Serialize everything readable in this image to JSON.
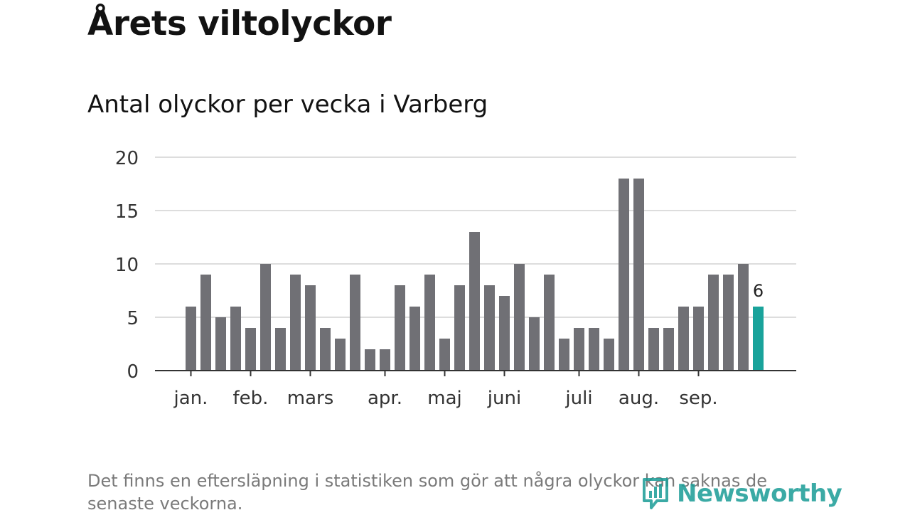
{
  "title": "Årets viltolyckor",
  "subtitle": "Antal olyckor per vecka i Varberg",
  "footnote": "Det finns en eftersläpning i statistiken som gör att några olyckor kan saknas de senaste veckorna.",
  "logo": {
    "text": "Newsworthy",
    "icon": "newsworthy-chart-icon"
  },
  "colors": {
    "bar": "#707075",
    "highlight": "#1aa39b",
    "grid": "#dddddd",
    "axis": "#333333"
  },
  "chart_data": {
    "type": "bar",
    "values": [
      6,
      9,
      5,
      6,
      4,
      10,
      4,
      9,
      8,
      4,
      3,
      9,
      2,
      2,
      8,
      6,
      9,
      3,
      8,
      13,
      8,
      7,
      10,
      5,
      9,
      3,
      4,
      4,
      3,
      18,
      18,
      4,
      4,
      6,
      6,
      9,
      9,
      10,
      6
    ],
    "highlight_last": true,
    "last_value_label": "6",
    "yticks": [
      "20",
      "15",
      "10",
      "5",
      "0"
    ],
    "ylim": [
      0,
      20
    ],
    "month_labels": [
      {
        "label": "jan.",
        "week": 1
      },
      {
        "label": "feb.",
        "week": 5
      },
      {
        "label": "mars",
        "week": 9
      },
      {
        "label": "apr.",
        "week": 14
      },
      {
        "label": "maj",
        "week": 18
      },
      {
        "label": "juni",
        "week": 22
      },
      {
        "label": "juli",
        "week": 27
      },
      {
        "label": "aug.",
        "week": 31
      },
      {
        "label": "sep.",
        "week": 35
      }
    ],
    "grid": true
  }
}
